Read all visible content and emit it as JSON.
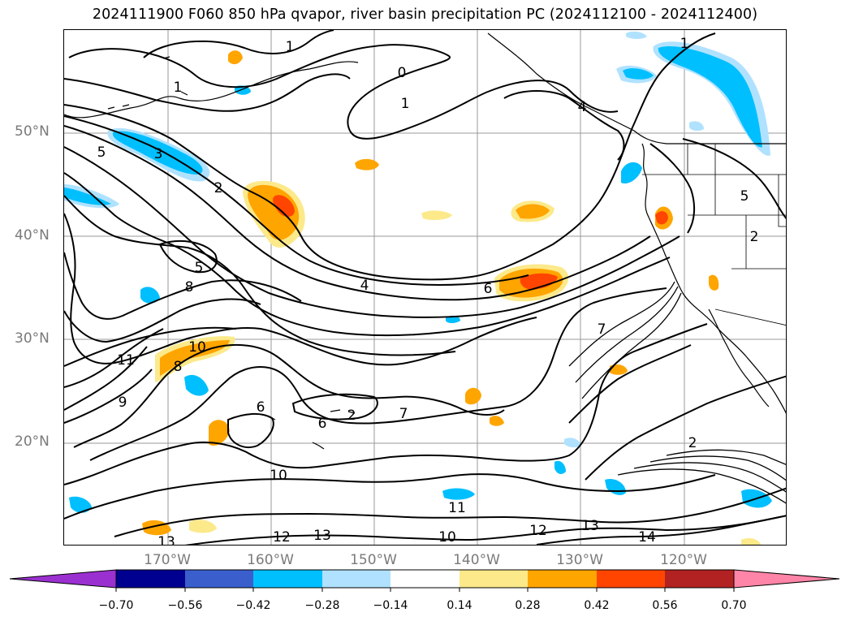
{
  "title": "2024111900 F060 850 hPa qvapor, river basin precipitation PC (2024112100 - 2024112400)",
  "lat_labels": [
    "50°N",
    "40°N",
    "30°N",
    "20°N"
  ],
  "lon_labels": [
    "170°W",
    "160°W",
    "150°W",
    "140°W",
    "130°W",
    "120°W"
  ],
  "colorbar": {
    "ticks": [
      "−0.70",
      "−0.56",
      "−0.42",
      "−0.28",
      "−0.14",
      "0.14",
      "0.28",
      "0.42",
      "0.56",
      "0.70"
    ],
    "colors": [
      "#9b30d0",
      "#000090",
      "#3a5fcd",
      "#00bfff",
      "#b0e2ff",
      "#ffffff",
      "#fce98a",
      "#ffa500",
      "#ff4500",
      "#b22222",
      "#ff85a8"
    ]
  },
  "contour_labels": [
    "0",
    "1",
    "1",
    "1",
    "1",
    "2",
    "2",
    "2",
    "2",
    "3",
    "4",
    "4",
    "5",
    "5",
    "5",
    "6",
    "6",
    "6",
    "7",
    "7",
    "8",
    "8",
    "9",
    "10",
    "10",
    "10",
    "11",
    "11",
    "12",
    "12",
    "13",
    "13",
    "13",
    "14"
  ],
  "colors": {
    "pos_low": "#fce98a",
    "pos_mid": "#ffa500",
    "pos_high": "#ff4500",
    "neg_low": "#b0e2ff",
    "neg_mid": "#00bfff",
    "neg_high": "#3a5fcd"
  }
}
